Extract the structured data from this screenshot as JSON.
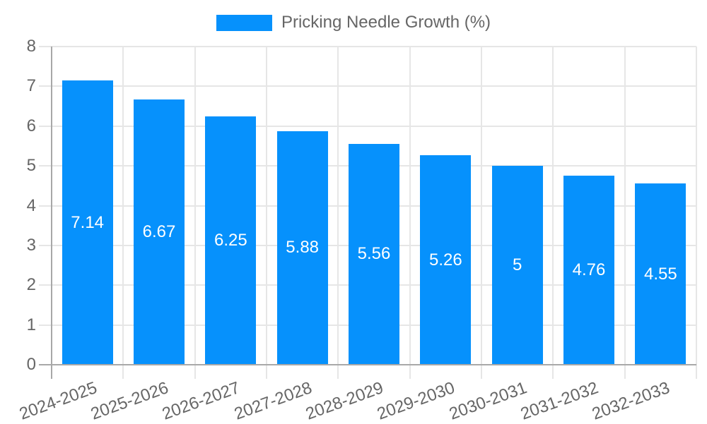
{
  "chart_data": {
    "type": "bar",
    "title": "Pricking Needle Growth (%)",
    "legend": [
      "Pricking Needle Growth (%)"
    ],
    "legend_position": "top",
    "categories": [
      "2024-2025",
      "2025-2026",
      "2026-2027",
      "2027-2028",
      "2028-2029",
      "2029-2030",
      "2030-2031",
      "2031-2032",
      "2032-2033"
    ],
    "values": [
      7.14,
      6.67,
      6.25,
      5.88,
      5.56,
      5.26,
      5,
      4.76,
      4.55
    ],
    "value_labels": [
      "7.14",
      "6.67",
      "6.25",
      "5.88",
      "5.56",
      "5.26",
      "5",
      "4.76",
      "4.55"
    ],
    "xlabel": "",
    "ylabel": "",
    "ylim": [
      0,
      8
    ],
    "y_ticks": [
      0,
      1,
      2,
      3,
      4,
      5,
      6,
      7,
      8
    ],
    "grid": true,
    "x_label_rotation_deg": -20,
    "colors": {
      "bar": "#0691fc",
      "bar_value_label": "#ffffff",
      "axis_text": "#666666",
      "grid_line": "#e6e6e6",
      "axis_line": "#a8a8a8",
      "background": "#ffffff"
    }
  }
}
